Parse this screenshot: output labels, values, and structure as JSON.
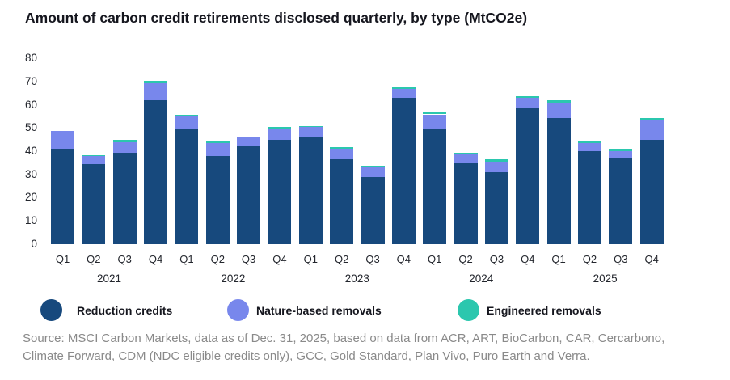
{
  "title": "Amount of carbon credit retirements disclosed quarterly, by type (MtCO2e)",
  "chart_data": {
    "type": "bar",
    "stacked": true,
    "title": "Amount of carbon credit retirements disclosed quarterly, by type (MtCO2e)",
    "unit": "MtCO2e",
    "categories": [
      "Q1",
      "Q2",
      "Q3",
      "Q4",
      "Q1",
      "Q2",
      "Q3",
      "Q4",
      "Q1",
      "Q2",
      "Q3",
      "Q4",
      "Q1",
      "Q2",
      "Q3",
      "Q4",
      "Q1",
      "Q2",
      "Q3",
      "Q4"
    ],
    "year_labels": [
      "2021",
      "2022",
      "2023",
      "2024",
      "2025"
    ],
    "quarters_per_year": 4,
    "ylim": [
      0,
      80
    ],
    "yticks": [
      0,
      10,
      20,
      30,
      40,
      50,
      60,
      70,
      80
    ],
    "grid": false,
    "legend_position": "bottom",
    "series": [
      {
        "name": "Reduction credits",
        "color": "#17497D",
        "values": [
          41,
          34.5,
          39.5,
          62,
          49.5,
          38,
          42.5,
          45,
          46.5,
          36.5,
          29,
          63,
          50,
          35,
          31,
          58.5,
          54.5,
          40,
          37,
          45
        ]
      },
      {
        "name": "Nature-based removals",
        "color": "#7887EC",
        "values": [
          8,
          3.5,
          4.5,
          7.5,
          5.5,
          5.5,
          3.5,
          5,
          4,
          4.5,
          4.5,
          4,
          6,
          4,
          4.5,
          4.5,
          6.5,
          3.5,
          3,
          8.5
        ]
      },
      {
        "name": "Engineered removals",
        "color": "#2BC7AE",
        "values": [
          0,
          0.5,
          1,
          1,
          1,
          1,
          0.5,
          0.5,
          0.5,
          1,
          0.5,
          1,
          1,
          0.5,
          1,
          1,
          1,
          1,
          1,
          1
        ]
      }
    ]
  },
  "source": {
    "line1": "Source: MSCI Carbon Markets, data as of Dec. 31, 2025, based on data from ACR, ART, BioCarbon, CAR, Cercarbono,",
    "line2": "Climate Forward, CDM (NDC eligible credits only), GCC, Gold Standard, Plan Vivo, Puro Earth and Verra."
  }
}
